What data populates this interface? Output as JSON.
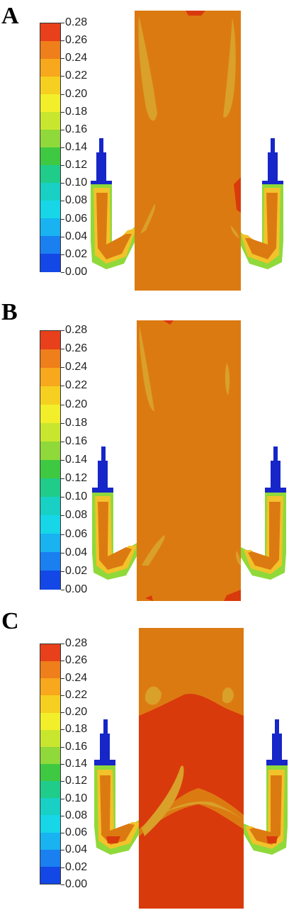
{
  "colorbar": {
    "labels": [
      "0.28",
      "0.26",
      "0.24",
      "0.22",
      "0.20",
      "0.18",
      "0.16",
      "0.14",
      "0.12",
      "0.10",
      "0.08",
      "0.06",
      "0.04",
      "0.02",
      "0.00"
    ],
    "colors": [
      "#e8401a",
      "#ef7f1a",
      "#f7a81c",
      "#f5d020",
      "#f2ef2a",
      "#c9e62e",
      "#8fd93a",
      "#3fc942",
      "#1fcc8a",
      "#18d0c4",
      "#16d6e8",
      "#18b3f0",
      "#1a80f0",
      "#1448e6",
      "#1020d8"
    ]
  },
  "panels": [
    {
      "letter": "A"
    },
    {
      "letter": "B"
    },
    {
      "letter": "C"
    }
  ],
  "colors": {
    "bulk": "#dc7a12",
    "high": "#d93a0c",
    "mid": "#d9a02a",
    "nozzle": "#1626c8",
    "cyan": "#2ad3e0",
    "green": "#8fd93a",
    "yellow": "#eedc3a"
  }
}
